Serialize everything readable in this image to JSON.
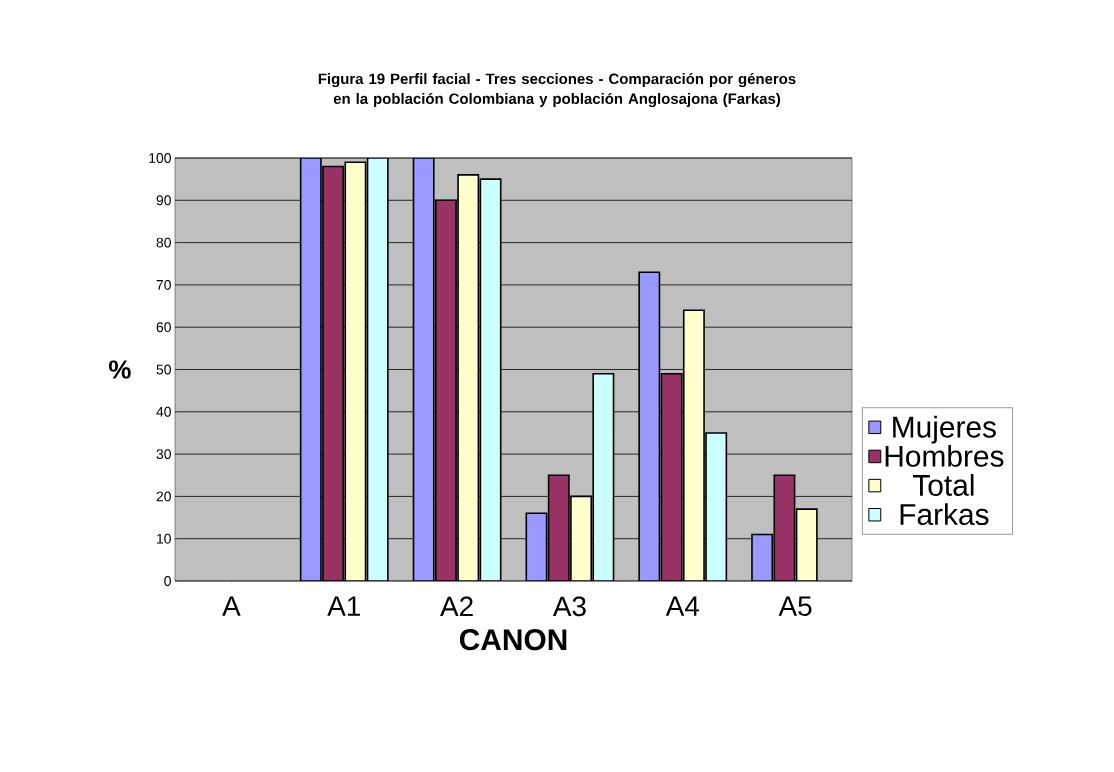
{
  "chart_data": {
    "type": "bar",
    "title": "Figura 19 Perfil facial - Tres secciones - Comparación por géneros en la población Colombiana y población Anglosajona (Farkas)",
    "xlabel": "CANON",
    "ylabel": "%",
    "categories": [
      "A",
      "A1",
      "A2",
      "A3",
      "A4",
      "A5"
    ],
    "series": [
      {
        "name": "Mujeres",
        "color": "#9999ff",
        "values": [
          null,
          100,
          100,
          16,
          73,
          11
        ]
      },
      {
        "name": "Hombres",
        "color": "#993366",
        "values": [
          null,
          98,
          90,
          25,
          49,
          25
        ]
      },
      {
        "name": "Total",
        "color": "#ffffcc",
        "values": [
          null,
          99,
          96,
          20,
          64,
          17
        ]
      },
      {
        "name": "Farkas",
        "color": "#ccffff",
        "values": [
          null,
          100,
          95,
          49,
          35,
          null
        ]
      }
    ],
    "ylim": [
      0,
      100
    ],
    "yticks": [
      0,
      10,
      20,
      30,
      40,
      50,
      60,
      70,
      80,
      90,
      100
    ],
    "grid": "y",
    "legend": "right"
  }
}
